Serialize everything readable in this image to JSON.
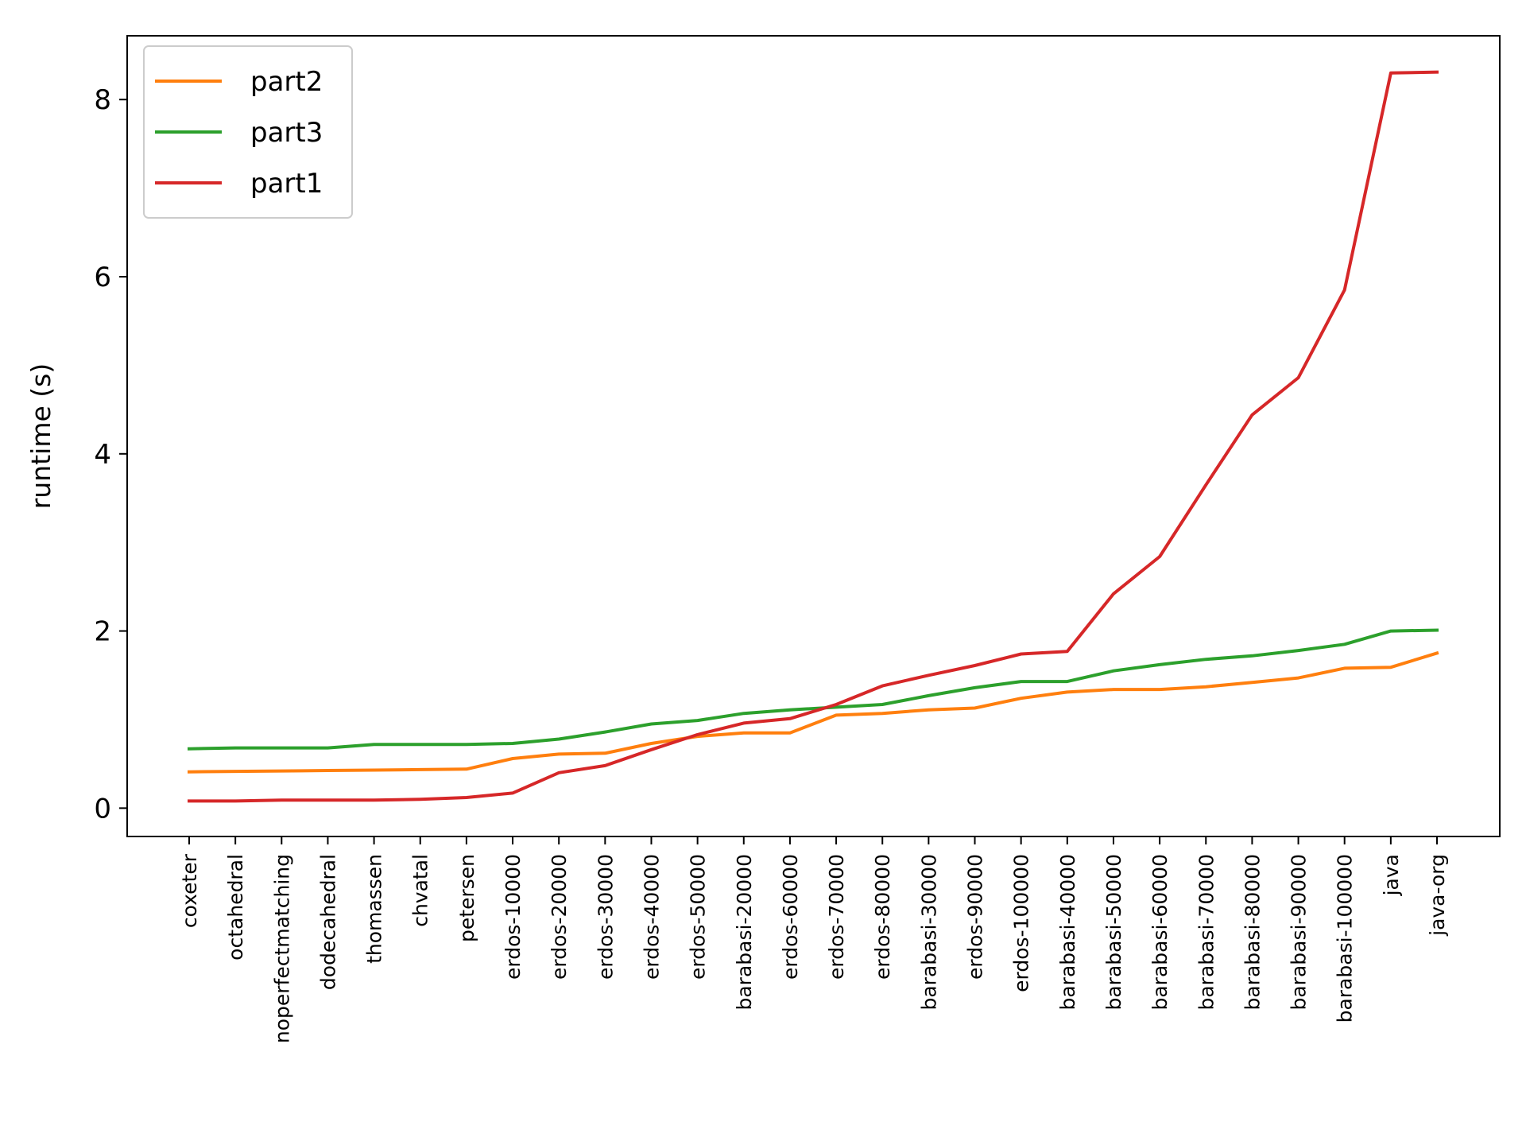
{
  "chart_data": {
    "type": "line",
    "title": "",
    "xlabel": "",
    "ylabel": "runtime (s)",
    "ylim": [
      -0.32,
      8.72
    ],
    "yticks": [
      0,
      2,
      4,
      6,
      8
    ],
    "grid": false,
    "legend_position": "top-left",
    "categories": [
      "coxeter",
      "octahedral",
      "noperfectmatching",
      "dodecahedral",
      "thomassen",
      "chvatal",
      "petersen",
      "erdos-10000",
      "erdos-20000",
      "erdos-30000",
      "erdos-40000",
      "erdos-50000",
      "barabasi-20000",
      "erdos-60000",
      "erdos-70000",
      "erdos-80000",
      "barabasi-30000",
      "erdos-90000",
      "erdos-100000",
      "barabasi-40000",
      "barabasi-50000",
      "barabasi-60000",
      "barabasi-70000",
      "barabasi-80000",
      "barabasi-90000",
      "barabasi-100000",
      "java",
      "java-org"
    ],
    "series": [
      {
        "name": "part2",
        "color": "#ff7f0e",
        "values": [
          0.41,
          0.415,
          0.42,
          0.425,
          0.43,
          0.435,
          0.44,
          0.56,
          0.61,
          0.62,
          0.73,
          0.81,
          0.85,
          0.85,
          1.05,
          1.07,
          1.11,
          1.13,
          1.24,
          1.31,
          1.34,
          1.34,
          1.37,
          1.42,
          1.47,
          1.58,
          1.59,
          1.75
        ]
      },
      {
        "name": "part3",
        "color": "#2ca02c",
        "values": [
          0.67,
          0.68,
          0.68,
          0.68,
          0.72,
          0.72,
          0.72,
          0.73,
          0.78,
          0.86,
          0.95,
          0.99,
          1.07,
          1.11,
          1.14,
          1.17,
          1.27,
          1.36,
          1.43,
          1.43,
          1.55,
          1.62,
          1.68,
          1.72,
          1.78,
          1.85,
          2.0,
          2.01
        ]
      },
      {
        "name": "part1",
        "color": "#d62728",
        "values": [
          0.08,
          0.08,
          0.09,
          0.09,
          0.09,
          0.1,
          0.12,
          0.17,
          0.4,
          0.48,
          0.66,
          0.83,
          0.96,
          1.01,
          1.17,
          1.38,
          1.5,
          1.61,
          1.74,
          1.77,
          2.42,
          2.84,
          3.65,
          4.44,
          4.86,
          5.85,
          8.3,
          8.31
        ]
      }
    ]
  }
}
